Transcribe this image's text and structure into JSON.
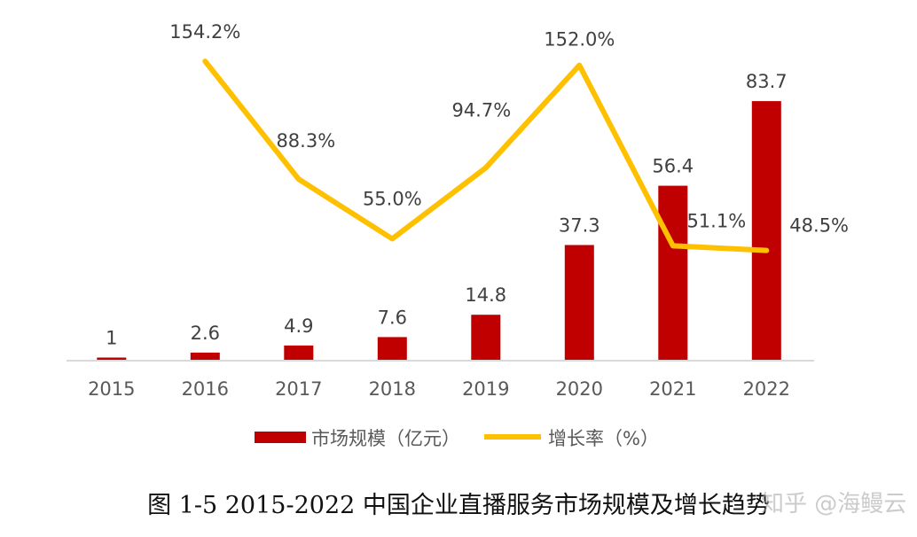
{
  "chart_data": {
    "type": "bar+line",
    "categories": [
      "2015",
      "2016",
      "2017",
      "2018",
      "2019",
      "2020",
      "2021",
      "2022"
    ],
    "series": [
      {
        "name": "市场规模（亿元）",
        "type": "bar",
        "values": [
          1,
          2.6,
          4.9,
          7.6,
          14.8,
          37.3,
          56.4,
          83.7
        ],
        "labels": [
          "1",
          "2.6",
          "4.9",
          "7.6",
          "14.8",
          "37.3",
          "56.4",
          "83.7"
        ]
      },
      {
        "name": "增长率（%）",
        "type": "line",
        "values": [
          null,
          154.2,
          88.3,
          55.0,
          94.7,
          152.0,
          51.1,
          48.5
        ],
        "labels": [
          "",
          "154.2%",
          "88.3%",
          "55.0%",
          "94.7%",
          "152.0%",
          "51.1%",
          "48.5%"
        ]
      }
    ],
    "bar_color": "#c00000",
    "line_color": "#ffc000",
    "legend_position": "bottom",
    "grid": false
  },
  "caption": "图 1-5 2015-2022 中国企业直播服务市场规模及增长趋势",
  "watermark": "知乎 @海鳗云"
}
